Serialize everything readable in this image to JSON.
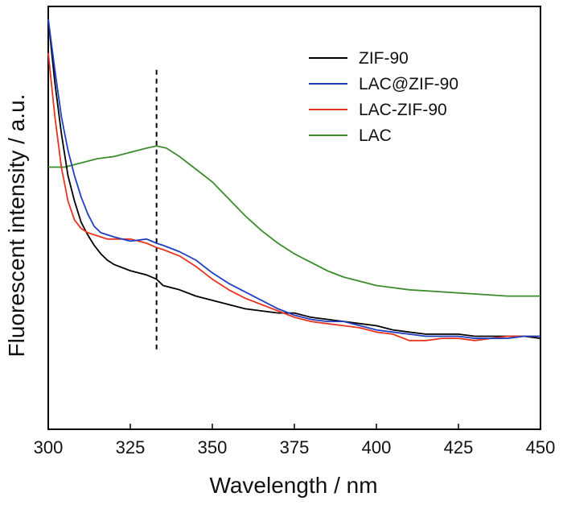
{
  "chart_data": {
    "type": "line",
    "xlabel": "Wavelength / nm",
    "ylabel": "Fluorescent intensity / a.u.",
    "xlim": [
      300,
      450
    ],
    "ylim": [
      0,
      100
    ],
    "xticks": [
      300,
      325,
      350,
      375,
      400,
      425,
      450
    ],
    "y_tick_labels": false,
    "legend_position": "top-right",
    "annotations": [
      {
        "type": "vertical-dashed-line",
        "x": 333,
        "y_range": [
          18,
          85
        ],
        "color": "#000000"
      }
    ],
    "series": [
      {
        "name": "ZIF-90",
        "color": "#000000",
        "x": [
          300,
          302,
          304,
          306,
          308,
          310,
          312,
          314,
          316,
          318,
          320,
          325,
          330,
          333,
          335,
          340,
          345,
          350,
          355,
          360,
          365,
          370,
          375,
          380,
          385,
          390,
          395,
          400,
          405,
          410,
          415,
          420,
          425,
          430,
          435,
          440,
          445,
          450
        ],
        "values": [
          97,
          82,
          70,
          60,
          54,
          49,
          46,
          43.5,
          41.5,
          40,
          39,
          37.5,
          36.5,
          35.5,
          34,
          33,
          31.5,
          30.5,
          29.5,
          28.5,
          28,
          27.5,
          27.5,
          26.5,
          26,
          25.5,
          25,
          24.5,
          23.5,
          23,
          22.5,
          22.5,
          22.5,
          22,
          22,
          22,
          22,
          21.5
        ]
      },
      {
        "name": "LAC@ZIF-90",
        "color": "#1f3fbf",
        "x": [
          300,
          302,
          304,
          306,
          308,
          310,
          312,
          314,
          316,
          318,
          320,
          325,
          330,
          333,
          335,
          340,
          345,
          350,
          355,
          360,
          365,
          370,
          375,
          380,
          385,
          390,
          395,
          400,
          405,
          410,
          415,
          420,
          425,
          430,
          435,
          440,
          445,
          450
        ],
        "values": [
          97,
          85,
          74,
          66,
          60,
          55,
          51,
          48,
          46.5,
          46,
          45.5,
          44.5,
          45,
          44,
          43.5,
          42,
          40,
          37,
          34.5,
          32.5,
          30.5,
          28.5,
          27,
          26,
          25.5,
          25.5,
          24.5,
          23.5,
          23,
          22.5,
          22,
          22,
          22,
          21.5,
          21.5,
          21.5,
          22,
          22
        ]
      },
      {
        "name": "LAC-ZIF-90",
        "color": "#e8351e",
        "x": [
          300,
          302,
          304,
          306,
          308,
          310,
          312,
          314,
          316,
          318,
          320,
          325,
          330,
          333,
          335,
          340,
          345,
          350,
          355,
          360,
          365,
          370,
          375,
          380,
          385,
          390,
          395,
          400,
          405,
          410,
          415,
          420,
          425,
          430,
          435,
          440,
          445,
          450
        ],
        "values": [
          89,
          74,
          62,
          54,
          49.5,
          47.5,
          46.5,
          46,
          45.5,
          45,
          45,
          45,
          44,
          43,
          42.5,
          41,
          38.5,
          35.5,
          33,
          31,
          29.5,
          28,
          26.5,
          25.5,
          25,
          24.5,
          24,
          23,
          22.5,
          21,
          21,
          21.5,
          21.5,
          21,
          21.5,
          22,
          22,
          22
        ]
      },
      {
        "name": "LAC",
        "color": "#3c8c2e",
        "x": [
          300,
          305,
          310,
          315,
          320,
          325,
          330,
          333,
          336,
          340,
          345,
          350,
          355,
          360,
          365,
          370,
          375,
          380,
          385,
          390,
          395,
          400,
          405,
          410,
          420,
          430,
          440,
          450
        ],
        "values": [
          62,
          62,
          63,
          64,
          64.5,
          65.5,
          66.5,
          67,
          66.5,
          64.5,
          61.5,
          58.5,
          54.5,
          50.5,
          47,
          44,
          41.5,
          39.5,
          37.5,
          36,
          35,
          34,
          33.5,
          33,
          32.5,
          32,
          31.5,
          31.5
        ]
      }
    ]
  }
}
